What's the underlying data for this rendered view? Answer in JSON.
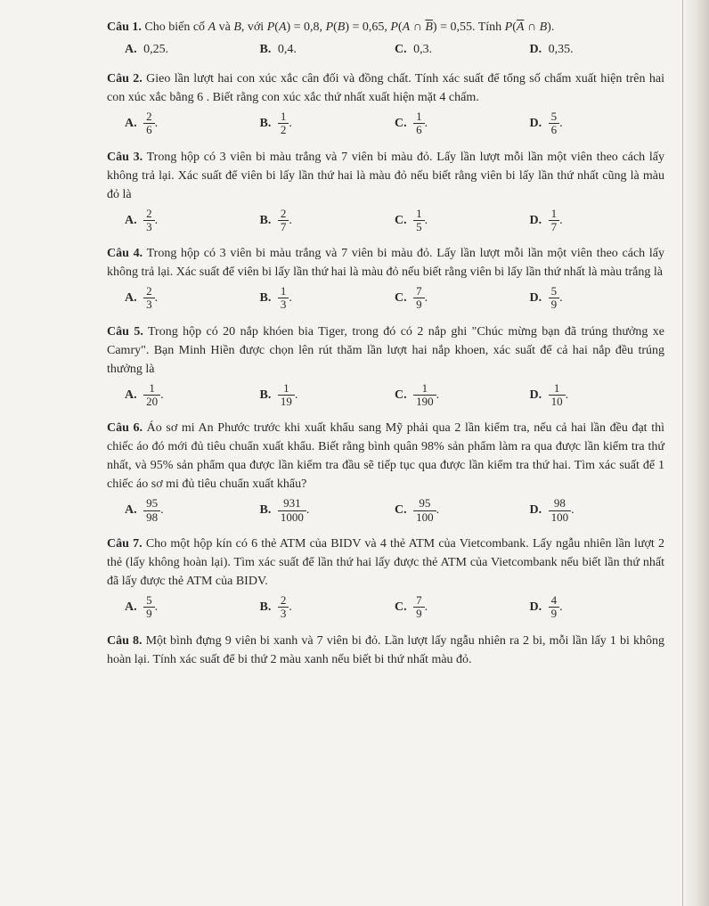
{
  "q1": {
    "label": "Câu 1.",
    "text_part1": "Cho biến cố ",
    "text_part2": " và ",
    "text_part3": ", với ",
    "formula": "P(A) = 0,8, P(B) = 0,65, P(A ∩ B̄) = 0,55",
    "text_part4": ". Tính ",
    "formula2": "P(Ā ∩ B)",
    "A": "0,25.",
    "B": "0,4.",
    "C": "0,3.",
    "D": "0,35."
  },
  "q2": {
    "label": "Câu 2.",
    "text": "Gieo lần lượt hai con xúc xắc cân đối và đồng chất. Tính xác suất để tổng số chấm xuất hiện trên hai con xúc xắc bằng 6 . Biết rằng con xúc xắc thứ nhất xuất hiện mặt 4 chấm.",
    "A": {
      "num": "2",
      "den": "6"
    },
    "B": {
      "num": "1",
      "den": "2"
    },
    "C": {
      "num": "1",
      "den": "6"
    },
    "D": {
      "num": "5",
      "den": "6"
    }
  },
  "q3": {
    "label": "Câu 3.",
    "text": "Trong hộp có 3 viên bi màu trắng và 7 viên bi màu đỏ. Lấy lần lượt mỗi lần một viên theo cách lấy không trả lại. Xác suất để viên bi lấy lần thứ hai là màu đỏ nếu biết rằng viên bi lấy lần thứ nhất cũng là màu đỏ là",
    "A": {
      "num": "2",
      "den": "3"
    },
    "B": {
      "num": "2",
      "den": "7"
    },
    "C": {
      "num": "1",
      "den": "5"
    },
    "D": {
      "num": "1",
      "den": "7"
    }
  },
  "q4": {
    "label": "Câu 4.",
    "text": "Trong hộp có 3 viên bi màu trắng và 7 viên bi màu đỏ. Lấy lần lượt mỗi lần một viên theo cách lấy không trả lại. Xác suất để viên bi lấy lần thứ hai là màu đỏ nếu biết rằng viên bi lấy lần thứ nhất là màu trắng là",
    "A": {
      "num": "2",
      "den": "3"
    },
    "B": {
      "num": "1",
      "den": "3"
    },
    "C": {
      "num": "7",
      "den": "9"
    },
    "D": {
      "num": "5",
      "den": "9"
    }
  },
  "q5": {
    "label": "Câu 5.",
    "text": "Trong hộp có 20 nắp khóen bia Tiger, trong đó có 2 nắp ghi \"Chúc mừng bạn đã trúng thưởng xe Camry\". Bạn Minh Hiền được chọn lên rút thăm lần lượt hai nắp khoen, xác suất để cả hai nắp đều trúng thưởng là",
    "A": {
      "num": "1",
      "den": "20"
    },
    "B": {
      "num": "1",
      "den": "19"
    },
    "C": {
      "num": "1",
      "den": "190"
    },
    "D": {
      "num": "1",
      "den": "10"
    }
  },
  "q6": {
    "label": "Câu 6.",
    "text": "Áo sơ mi An Phước trước khi xuất khẩu sang Mỹ phải qua 2 lần kiểm tra, nếu cả hai lần đều đạt thì chiếc áo đó mới đủ tiêu chuẩn xuất khẩu. Biết rằng bình quân 98% sản phẩm làm ra qua được lần kiểm tra thứ nhất, và 95% sản phẩm qua được lần kiểm tra đầu sẽ tiếp tục qua được lần kiểm tra thứ hai. Tìm xác suất để 1 chiếc áo sơ mi đủ tiêu chuẩn xuất khẩu?",
    "A": {
      "num": "95",
      "den": "98"
    },
    "B": {
      "num": "931",
      "den": "1000"
    },
    "C": {
      "num": "95",
      "den": "100"
    },
    "D": {
      "num": "98",
      "den": "100"
    }
  },
  "q7": {
    "label": "Câu 7.",
    "text": "Cho một hộp kín có 6 thẻ ATM của BIDV và 4 thẻ ATM của Vietcombank. Lấy ngẫu nhiên lần lượt 2 thẻ (lấy không hoàn lại). Tìm xác suất để lần thứ hai lấy được thẻ ATM của Vietcombank nếu biết lần thứ nhất đã lấy được thẻ ATM của BIDV.",
    "A": {
      "num": "5",
      "den": "9"
    },
    "B": {
      "num": "2",
      "den": "3"
    },
    "C": {
      "num": "7",
      "den": "9"
    },
    "D": {
      "num": "4",
      "den": "9"
    }
  },
  "q8": {
    "label": "Câu 8.",
    "text": "Một bình đựng 9 viên bi xanh và 7 viên bi đỏ. Lần lượt lấy ngẫu nhiên ra 2 bi, mỗi lần lấy 1 bi không hoàn lại. Tính xác suất để bi thứ 2 màu xanh nếu biết bi thứ nhất màu đỏ."
  }
}
